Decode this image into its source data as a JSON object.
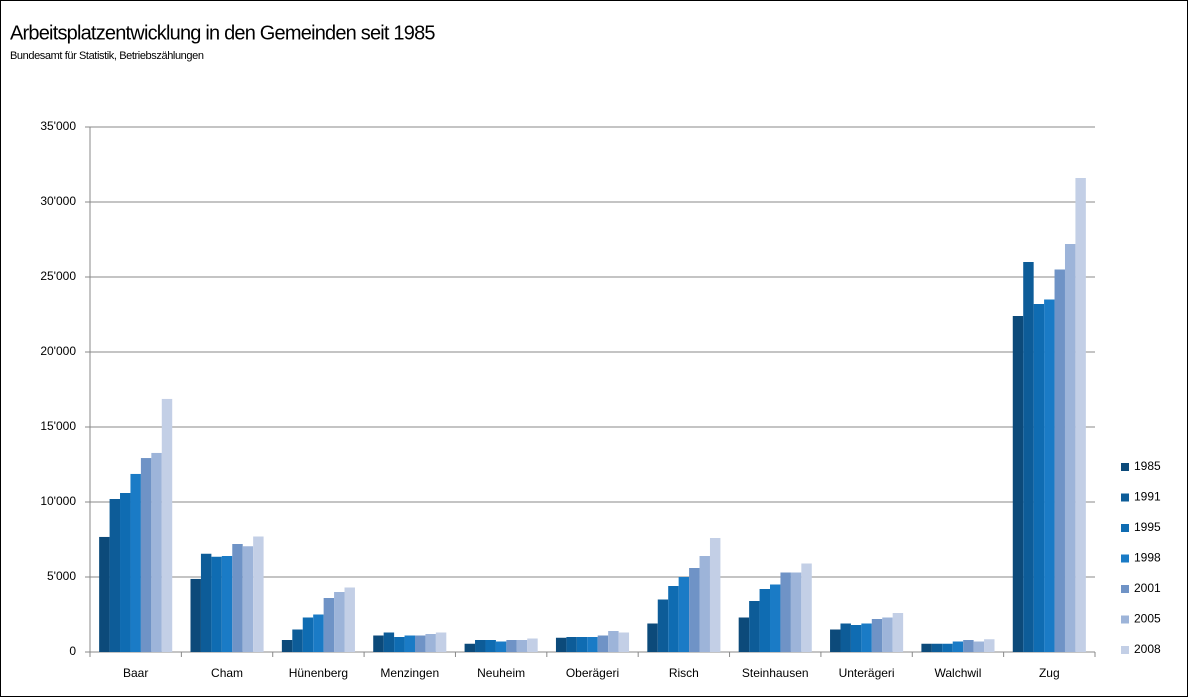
{
  "chart_data": {
    "type": "bar",
    "title": "Arbeitsplatzentwicklung in den Gemeinden seit 1985",
    "subtitle": "Bundesamt  für Statistik, Betriebszählungen",
    "categories": [
      "Baar",
      "Cham",
      "Hünenberg",
      "Menzingen",
      "Neuheim",
      "Oberägeri",
      "Risch",
      "Steinhausen",
      "Unterägeri",
      "Walchwil",
      "Zug"
    ],
    "series": [
      {
        "name": "1985",
        "color": "#0c4a7a",
        "values": [
          7670,
          4870,
          800,
          1100,
          550,
          950,
          1900,
          2300,
          1500,
          550,
          22400
        ]
      },
      {
        "name": "1991",
        "color": "#0d5c98",
        "values": [
          10200,
          6550,
          1500,
          1300,
          800,
          1000,
          3500,
          3400,
          1900,
          550,
          26000
        ]
      },
      {
        "name": "1995",
        "color": "#0f6cb2",
        "values": [
          10600,
          6350,
          2300,
          1000,
          800,
          1000,
          4400,
          4200,
          1800,
          550,
          23200
        ]
      },
      {
        "name": "1998",
        "color": "#1a7bc6",
        "values": [
          11870,
          6400,
          2500,
          1100,
          700,
          1000,
          5000,
          4500,
          1900,
          700,
          23500
        ]
      },
      {
        "name": "2001",
        "color": "#6f93c6",
        "values": [
          12930,
          7200,
          3600,
          1100,
          800,
          1100,
          5600,
          5300,
          2200,
          800,
          25500
        ]
      },
      {
        "name": "2005",
        "color": "#9db4d9",
        "values": [
          13270,
          7050,
          4000,
          1200,
          800,
          1400,
          6400,
          5300,
          2300,
          700,
          27200
        ]
      },
      {
        "name": "2008",
        "color": "#c3cfe6",
        "values": [
          16870,
          7700,
          4300,
          1300,
          900,
          1300,
          7600,
          5900,
          2600,
          850,
          31600
        ]
      }
    ],
    "ylim": [
      0,
      35000
    ],
    "yticks": [
      0,
      {
        "value": 5000,
        "label": "5'000"
      },
      {
        "value": 10000,
        "label": "10'000"
      },
      {
        "value": 15000,
        "label": "15'000"
      },
      {
        "value": 20000,
        "label": "20'000"
      },
      {
        "value": 25000,
        "label": "25'000"
      },
      {
        "value": 30000,
        "label": "30'000"
      },
      {
        "value": 35000,
        "label": "35'000"
      }
    ],
    "grid": true,
    "legend": "right"
  }
}
